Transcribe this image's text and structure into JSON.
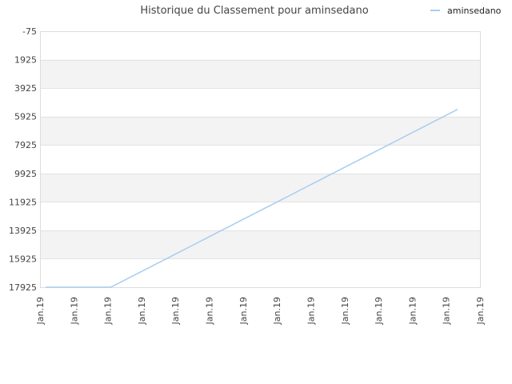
{
  "chart_data": {
    "type": "line",
    "title": "Historique du Classement pour aminsedano",
    "xlabel": "",
    "ylabel": "",
    "y_inverted": true,
    "ylim": [
      -75,
      17925
    ],
    "y_ticks": [
      -75,
      1925,
      3925,
      5925,
      7925,
      9925,
      11925,
      13925,
      15925,
      17925
    ],
    "x_tick_labels": [
      "Jan.19",
      "Jan.19",
      "Jan.19",
      "Jan.19",
      "Jan.19",
      "Jan.19",
      "Jan.19",
      "Jan.19",
      "Jan.19",
      "Jan.19",
      "Jan.19",
      "Jan.19",
      "Jan.19",
      "Jan.19"
    ],
    "grid": true,
    "legend_position": "top-right",
    "series": [
      {
        "name": "aminsedano",
        "color": "#a8cdf0",
        "values": [
          17925,
          17925,
          17925,
          17925,
          17925,
          17925,
          17925,
          17925,
          17925,
          17925,
          17925,
          17925,
          17925,
          17925,
          17925,
          17925,
          17925,
          17925,
          17925,
          17925,
          17925,
          17925,
          17820,
          17708,
          17597,
          17485,
          17373,
          17262,
          17150,
          17038,
          16926,
          16815,
          16703,
          16591,
          16480,
          16368,
          16256,
          16145,
          16033,
          15921,
          15810,
          15698,
          15586,
          15475,
          15363,
          15251,
          15140,
          15028,
          14916,
          14804,
          14693,
          14581,
          14469,
          14358,
          14246,
          14134,
          14023,
          13911,
          13799,
          13688,
          13576,
          13464,
          13353,
          13241,
          13129,
          13018,
          12906,
          12794,
          12682,
          12571,
          12459,
          12347,
          12236,
          12124,
          12012,
          11901,
          11789,
          11677,
          11566,
          11454,
          11342,
          11231,
          11119,
          11007,
          10896,
          10784,
          10672,
          10560,
          10449,
          10337,
          10225,
          10114,
          10002,
          9890,
          9779,
          9667,
          9555,
          9444,
          9332,
          9220,
          9109,
          8997,
          8885,
          8774,
          8662,
          8550,
          8438,
          8327,
          8215,
          8103,
          7992,
          7880,
          7768,
          7657,
          7545,
          7433,
          7322,
          7210,
          7098,
          6987,
          6875,
          6763,
          6651,
          6540,
          6428,
          6316,
          6205,
          6093,
          5981,
          5870,
          5758,
          5646,
          5535,
          5423
        ]
      }
    ]
  }
}
